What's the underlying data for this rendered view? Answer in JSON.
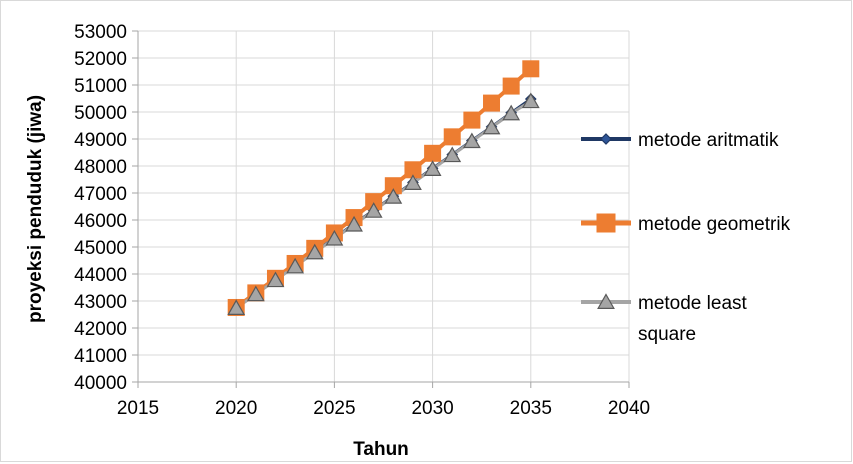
{
  "chart_data": {
    "type": "line",
    "xlabel": "Tahun",
    "ylabel": "proyeksi penduduk (jiwa)",
    "xlim": [
      2015,
      2040
    ],
    "ylim": [
      40000,
      53000
    ],
    "x_ticks": [
      2015,
      2020,
      2025,
      2030,
      2035,
      2040
    ],
    "y_ticks": [
      40000,
      41000,
      42000,
      43000,
      44000,
      45000,
      46000,
      47000,
      48000,
      49000,
      50000,
      51000,
      52000,
      53000
    ],
    "x_tick_labels": [
      "2015",
      "2020",
      "2025",
      "2030",
      "2035",
      "2040"
    ],
    "y_tick_labels": [
      "40000",
      "41000",
      "42000",
      "43000",
      "44000",
      "45000",
      "46000",
      "47000",
      "48000",
      "49000",
      "50000",
      "51000",
      "52000",
      "53000"
    ],
    "grid": true,
    "legend_position": "right",
    "x": [
      2020,
      2021,
      2022,
      2023,
      2024,
      2025,
      2026,
      2027,
      2028,
      2029,
      2030,
      2031,
      2032,
      2033,
      2034,
      2035
    ],
    "series": [
      {
        "name": "metode aritmatik",
        "legend_lines": [
          "metode aritmatik"
        ],
        "color": "#1f3864",
        "marker": "diamond",
        "values": [
          42760,
          43270,
          43790,
          44300,
          44820,
          45330,
          45850,
          46360,
          46880,
          47390,
          47910,
          48420,
          48940,
          49450,
          49970,
          50480
        ]
      },
      {
        "name": "metode geometrik",
        "legend_lines": [
          "metode geometrik"
        ],
        "color": "#ed7d31",
        "marker": "square",
        "values": [
          42760,
          43300,
          43840,
          44390,
          44950,
          45520,
          46090,
          46680,
          47270,
          47860,
          48470,
          49080,
          49700,
          50330,
          50960,
          51600
        ]
      },
      {
        "name": "metode least square",
        "legend_lines": [
          "metode least",
          "square"
        ],
        "color": "#a5a5a5",
        "marker": "triangle",
        "values": [
          42740,
          43250,
          43770,
          44280,
          44800,
          45310,
          45830,
          46340,
          46860,
          47370,
          47890,
          48400,
          48920,
          49430,
          49950,
          50400
        ]
      }
    ]
  }
}
